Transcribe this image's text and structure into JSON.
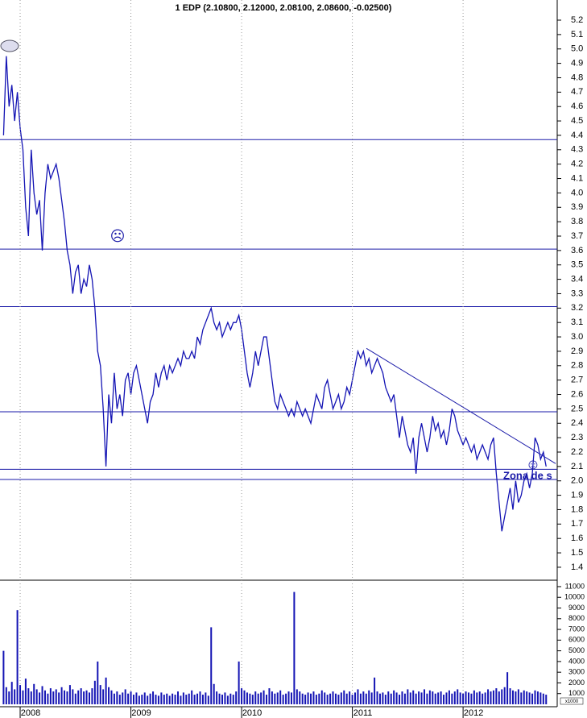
{
  "chart_data": [
    {
      "type": "line",
      "title": "1 EDP (2.10800, 2.12000, 2.08100, 2.08600, -0.02500)",
      "color": "#1414b4",
      "level_color": "#1a1aa8",
      "x": [
        2007.85,
        2007.875,
        2007.9,
        2007.925,
        2007.95,
        2007.975,
        2008,
        2008.025,
        2008.05,
        2008.075,
        2008.1,
        2008.125,
        2008.15,
        2008.175,
        2008.2,
        2008.225,
        2008.25,
        2008.275,
        2008.3,
        2008.325,
        2008.35,
        2008.375,
        2008.4,
        2008.425,
        2008.45,
        2008.475,
        2008.5,
        2008.525,
        2008.55,
        2008.575,
        2008.6,
        2008.625,
        2008.65,
        2008.675,
        2008.7,
        2008.725,
        2008.75,
        2008.775,
        2008.8,
        2008.825,
        2008.85,
        2008.875,
        2008.9,
        2008.925,
        2008.95,
        2008.975,
        2009,
        2009.025,
        2009.05,
        2009.075,
        2009.1,
        2009.125,
        2009.15,
        2009.175,
        2009.2,
        2009.225,
        2009.25,
        2009.275,
        2009.3,
        2009.325,
        2009.35,
        2009.375,
        2009.4,
        2009.425,
        2009.45,
        2009.475,
        2009.5,
        2009.525,
        2009.55,
        2009.575,
        2009.6,
        2009.625,
        2009.65,
        2009.675,
        2009.7,
        2009.725,
        2009.75,
        2009.775,
        2009.8,
        2009.825,
        2009.85,
        2009.875,
        2009.9,
        2009.925,
        2009.95,
        2009.975,
        2010,
        2010.025,
        2010.05,
        2010.075,
        2010.1,
        2010.125,
        2010.15,
        2010.175,
        2010.2,
        2010.225,
        2010.25,
        2010.275,
        2010.3,
        2010.325,
        2010.35,
        2010.375,
        2010.4,
        2010.425,
        2010.45,
        2010.475,
        2010.5,
        2010.525,
        2010.55,
        2010.575,
        2010.6,
        2010.625,
        2010.65,
        2010.675,
        2010.7,
        2010.725,
        2010.75,
        2010.775,
        2010.8,
        2010.825,
        2010.85,
        2010.875,
        2010.9,
        2010.925,
        2010.95,
        2010.975,
        2011,
        2011.025,
        2011.05,
        2011.075,
        2011.1,
        2011.125,
        2011.15,
        2011.175,
        2011.2,
        2011.225,
        2011.25,
        2011.275,
        2011.3,
        2011.325,
        2011.35,
        2011.375,
        2011.4,
        2011.425,
        2011.45,
        2011.475,
        2011.5,
        2011.525,
        2011.55,
        2011.575,
        2011.6,
        2011.625,
        2011.65,
        2011.675,
        2011.7,
        2011.725,
        2011.75,
        2011.775,
        2011.8,
        2011.825,
        2011.85,
        2011.875,
        2011.9,
        2011.925,
        2011.95,
        2011.975,
        2012,
        2012.025,
        2012.05,
        2012.075,
        2012.1,
        2012.125,
        2012.15,
        2012.175,
        2012.2,
        2012.225,
        2012.25,
        2012.275,
        2012.3,
        2012.325,
        2012.35,
        2012.375,
        2012.4,
        2012.425,
        2012.45,
        2012.475,
        2012.5,
        2012.525,
        2012.55,
        2012.575,
        2012.6,
        2012.625,
        2012.65,
        2012.675,
        2012.7,
        2012.725,
        2012.75
      ],
      "values": [
        4.4,
        4.95,
        4.6,
        4.75,
        4.5,
        4.7,
        4.45,
        4.3,
        3.9,
        3.7,
        4.3,
        4.0,
        3.85,
        3.95,
        3.6,
        4.0,
        4.2,
        4.1,
        4.15,
        4.2,
        4.1,
        3.95,
        3.8,
        3.6,
        3.5,
        3.3,
        3.45,
        3.5,
        3.3,
        3.4,
        3.35,
        3.5,
        3.4,
        3.2,
        2.9,
        2.8,
        2.5,
        2.1,
        2.6,
        2.4,
        2.75,
        2.5,
        2.6,
        2.45,
        2.7,
        2.75,
        2.6,
        2.75,
        2.8,
        2.7,
        2.6,
        2.5,
        2.4,
        2.55,
        2.6,
        2.75,
        2.65,
        2.75,
        2.8,
        2.7,
        2.8,
        2.75,
        2.8,
        2.85,
        2.8,
        2.9,
        2.85,
        2.85,
        2.9,
        2.85,
        3.0,
        2.95,
        3.05,
        3.1,
        3.15,
        3.2,
        3.1,
        3.05,
        3.1,
        3.0,
        3.05,
        3.1,
        3.05,
        3.1,
        3.1,
        3.15,
        3.05,
        2.9,
        2.75,
        2.65,
        2.75,
        2.9,
        2.8,
        2.9,
        3.0,
        3.0,
        2.85,
        2.7,
        2.55,
        2.5,
        2.6,
        2.55,
        2.5,
        2.45,
        2.5,
        2.45,
        2.55,
        2.5,
        2.45,
        2.5,
        2.45,
        2.4,
        2.5,
        2.6,
        2.55,
        2.5,
        2.65,
        2.7,
        2.6,
        2.5,
        2.55,
        2.6,
        2.5,
        2.55,
        2.65,
        2.6,
        2.7,
        2.8,
        2.9,
        2.85,
        2.9,
        2.8,
        2.85,
        2.75,
        2.8,
        2.85,
        2.8,
        2.75,
        2.65,
        2.6,
        2.55,
        2.6,
        2.45,
        2.3,
        2.45,
        2.35,
        2.25,
        2.2,
        2.3,
        2.05,
        2.3,
        2.4,
        2.3,
        2.2,
        2.3,
        2.45,
        2.35,
        2.4,
        2.3,
        2.35,
        2.25,
        2.35,
        2.5,
        2.45,
        2.35,
        2.3,
        2.25,
        2.3,
        2.25,
        2.2,
        2.25,
        2.15,
        2.2,
        2.25,
        2.2,
        2.15,
        2.25,
        2.3,
        2.05,
        1.85,
        1.65,
        1.75,
        1.85,
        1.95,
        1.8,
        2.0,
        1.85,
        1.9,
        2.0,
        2.05,
        1.95,
        2.05,
        2.3,
        2.25,
        2.15,
        2.2,
        2.1
      ],
      "xlim": [
        2007.818,
        2012.85
      ],
      "xticks": [
        2008,
        2009,
        2010,
        2011,
        2012
      ],
      "ylim": [
        1.31,
        5.34
      ],
      "yticks": [
        1.4,
        1.5,
        1.6,
        1.7,
        1.8,
        1.9,
        {
          "value": 2,
          "label": "2.0"
        },
        2.1,
        2.2,
        2.3,
        2.4,
        2.5,
        2.6,
        2.7,
        2.8,
        2.9,
        {
          "value": 3,
          "label": "3.0"
        },
        3.1,
        3.2,
        3.3,
        3.4,
        3.5,
        3.6,
        3.7,
        3.8,
        3.9,
        {
          "value": 4,
          "label": "4.0"
        },
        4.1,
        4.2,
        4.3,
        4.4,
        4.5,
        4.6,
        4.7,
        4.8,
        4.9,
        {
          "value": 5,
          "label": "5.0"
        },
        5.1,
        5.2
      ],
      "levels": [
        4.37,
        3.61,
        3.21,
        2.48,
        2.08,
        2.01
      ],
      "trendline": {
        "x": [
          2011.127,
          2012.836
        ],
        "y": [
          2.92,
          2.12
        ]
      },
      "annotations": [
        "☹",
        "☺",
        "Zona de s"
      ]
    },
    {
      "type": "bar",
      "color": "#1414b4",
      "y_label": "x1000",
      "values": [
        5000,
        1600,
        1200,
        2100,
        1400,
        8800,
        1800,
        1300,
        2400,
        1500,
        1200,
        1900,
        1400,
        1100,
        1700,
        1300,
        1000,
        1500,
        1200,
        1400,
        1100,
        1600,
        1300,
        1200,
        1800,
        1400,
        1000,
        1300,
        1500,
        1200,
        1300,
        1100,
        1500,
        2200,
        4000,
        1800,
        1400,
        2500,
        1600,
        1300,
        1000,
        1200,
        900,
        1100,
        1400,
        1000,
        1200,
        900,
        1100,
        800,
        900,
        1100,
        800,
        1000,
        1200,
        900,
        800,
        1100,
        900,
        1000,
        800,
        1000,
        900,
        1200,
        800,
        1100,
        900,
        1000,
        1300,
        900,
        1000,
        1200,
        900,
        1100,
        800,
        7200,
        1900,
        1200,
        1000,
        900,
        1100,
        800,
        1000,
        900,
        1200,
        4000,
        1500,
        1300,
        1100,
        1000,
        900,
        1200,
        1000,
        1100,
        1300,
        900,
        1500,
        1200,
        1000,
        1100,
        1300,
        900,
        1000,
        1200,
        1100,
        10500,
        1400,
        1200,
        1000,
        900,
        1100,
        1000,
        1200,
        900,
        1000,
        1300,
        1100,
        900,
        1000,
        1200,
        1000,
        900,
        1100,
        1300,
        1000,
        1200,
        900,
        1100,
        1400,
        1000,
        1200,
        1000,
        1300,
        1100,
        2500,
        1200,
        1000,
        1100,
        900,
        1200,
        1000,
        1300,
        1100,
        900,
        1200,
        1000,
        1400,
        1100,
        1300,
        1000,
        1200,
        1100,
        1400,
        1000,
        1300,
        1200,
        1000,
        1100,
        1200,
        900,
        1100,
        1300,
        1000,
        1200,
        1400,
        1100,
        1000,
        1200,
        1100,
        1000,
        1300,
        1100,
        1200,
        1000,
        1100,
        1400,
        1200,
        1300,
        1500,
        1200,
        1400,
        1600,
        3000,
        1500,
        1300,
        1200,
        1400,
        1100,
        1300,
        1200,
        1100,
        1000,
        1300,
        1200,
        1100,
        1000,
        900
      ],
      "ylim": [
        0,
        11600
      ],
      "yticks": [
        1000,
        2000,
        3000,
        4000,
        5000,
        6000,
        7000,
        8000,
        9000,
        10000,
        11000
      ]
    }
  ]
}
